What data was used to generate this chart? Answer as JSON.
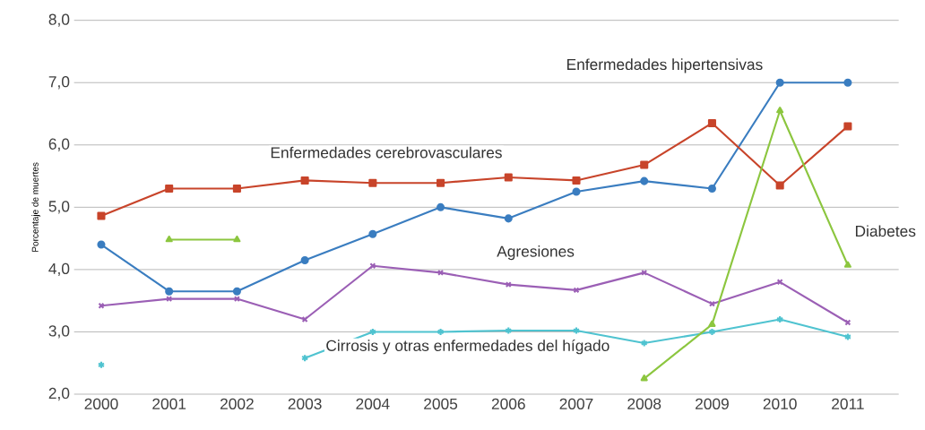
{
  "chart_data": {
    "type": "line",
    "ylabel": "Porcentaje de muertes",
    "categories": [
      "2000",
      "2001",
      "2002",
      "2003",
      "2004",
      "2005",
      "2006",
      "2007",
      "2008",
      "2009",
      "2010",
      "2011"
    ],
    "ylim": [
      2,
      8
    ],
    "yticks": [
      {
        "value": 2,
        "label": "2,0"
      },
      {
        "value": 3,
        "label": "3,0"
      },
      {
        "value": 4,
        "label": "4,0"
      },
      {
        "value": 5,
        "label": "5,0"
      },
      {
        "value": 6,
        "label": "6,0"
      },
      {
        "value": 7,
        "label": "7,0"
      },
      {
        "value": 8,
        "label": "8,0"
      }
    ],
    "grid": "y",
    "legend": false,
    "series": [
      {
        "name": "Enfermedades hipertensivas",
        "color": "#3a7dc0",
        "marker": "circle",
        "values": [
          4.4,
          3.65,
          3.65,
          4.15,
          4.57,
          5.0,
          4.82,
          5.25,
          5.42,
          5.3,
          7.0,
          7.0
        ]
      },
      {
        "name": "Enfermedades cerebrovasculares",
        "color": "#c8442a",
        "marker": "square",
        "values": [
          4.86,
          5.3,
          5.3,
          5.43,
          5.39,
          5.39,
          5.48,
          5.43,
          5.68,
          6.35,
          5.35,
          6.3
        ]
      },
      {
        "name": "Agresiones",
        "color": "#9b5fb5",
        "marker": "cross",
        "values": [
          3.42,
          3.53,
          3.53,
          3.2,
          4.06,
          3.95,
          3.76,
          3.67,
          3.95,
          3.45,
          3.8,
          3.15
        ]
      },
      {
        "name": "Cirrosis y otras enfermedades del hígado",
        "color": "#4fc3d0",
        "marker": "cross",
        "values": [
          2.47,
          null,
          null,
          2.58,
          3.0,
          3.0,
          3.02,
          3.02,
          2.82,
          3.0,
          3.2,
          2.92
        ]
      },
      {
        "name": "Diabetes",
        "color": "#8cc63f",
        "marker": "triangle",
        "values": [
          null,
          4.48,
          4.48,
          null,
          null,
          null,
          null,
          null,
          2.25,
          3.12,
          6.55,
          4.07
        ]
      }
    ]
  }
}
